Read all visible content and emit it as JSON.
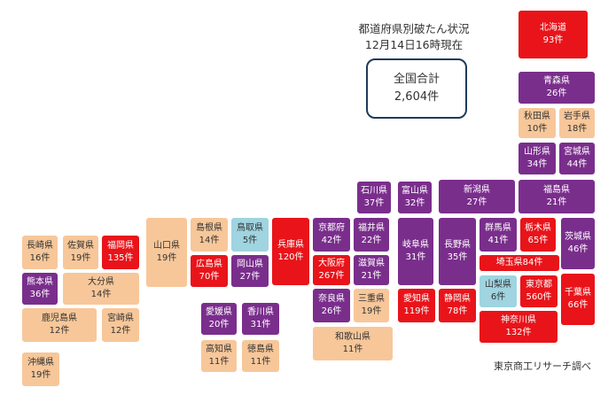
{
  "header": {
    "title_line1": "都道府県別破たん状況",
    "title_line2": "12月14日16時現在"
  },
  "total": {
    "label": "全国合計",
    "value": "2,604件"
  },
  "source": "東京商工リサーチ調べ",
  "colors": {
    "red": "#e8141a",
    "purple": "#7a2e8c",
    "orange": "#f7c79a",
    "blue": "#9fd4e0"
  },
  "prefectures": [
    {
      "name": "北海道",
      "count": "93件",
      "color": "red"
    },
    {
      "name": "青森県",
      "count": "26件",
      "color": "purple"
    },
    {
      "name": "秋田県",
      "count": "10件",
      "color": "orange"
    },
    {
      "name": "岩手県",
      "count": "18件",
      "color": "orange"
    },
    {
      "name": "山形県",
      "count": "34件",
      "color": "purple"
    },
    {
      "name": "宮城県",
      "count": "44件",
      "color": "purple"
    },
    {
      "name": "石川県",
      "count": "37件",
      "color": "purple"
    },
    {
      "name": "富山県",
      "count": "32件",
      "color": "purple"
    },
    {
      "name": "新潟県",
      "count": "27件",
      "color": "purple"
    },
    {
      "name": "福島県",
      "count": "21件",
      "color": "purple"
    },
    {
      "name": "島根県",
      "count": "14件",
      "color": "orange"
    },
    {
      "name": "鳥取県",
      "count": "5件",
      "color": "blue"
    },
    {
      "name": "兵庫県",
      "count": "120件",
      "color": "red"
    },
    {
      "name": "京都府",
      "count": "42件",
      "color": "purple"
    },
    {
      "name": "福井県",
      "count": "22件",
      "color": "purple"
    },
    {
      "name": "岐阜県",
      "count": "31件",
      "color": "purple"
    },
    {
      "name": "長野県",
      "count": "35件",
      "color": "purple"
    },
    {
      "name": "群馬県",
      "count": "41件",
      "color": "purple"
    },
    {
      "name": "栃木県",
      "count": "65件",
      "color": "red"
    },
    {
      "name": "茨城県",
      "count": "46件",
      "color": "purple"
    },
    {
      "name": "長崎県",
      "count": "16件",
      "color": "orange"
    },
    {
      "name": "佐賀県",
      "count": "19件",
      "color": "orange"
    },
    {
      "name": "福岡県",
      "count": "135件",
      "color": "red"
    },
    {
      "name": "山口県",
      "count": "19件",
      "color": "orange"
    },
    {
      "name": "広島県",
      "count": "70件",
      "color": "red"
    },
    {
      "name": "岡山県",
      "count": "27件",
      "color": "purple"
    },
    {
      "name": "大阪府",
      "count": "267件",
      "color": "red"
    },
    {
      "name": "滋賀県",
      "count": "21件",
      "color": "purple"
    },
    {
      "name": "埼玉県",
      "count": "84件",
      "color": "red"
    },
    {
      "name": "熊本県",
      "count": "36件",
      "color": "purple"
    },
    {
      "name": "大分県",
      "count": "14件",
      "color": "orange"
    },
    {
      "name": "山梨県",
      "count": "6件",
      "color": "blue"
    },
    {
      "name": "東京都",
      "count": "560件",
      "color": "red"
    },
    {
      "name": "千葉県",
      "count": "66件",
      "color": "red"
    },
    {
      "name": "奈良県",
      "count": "26件",
      "color": "purple"
    },
    {
      "name": "三重県",
      "count": "19件",
      "color": "orange"
    },
    {
      "name": "愛知県",
      "count": "119件",
      "color": "red"
    },
    {
      "name": "静岡県",
      "count": "78件",
      "color": "red"
    },
    {
      "name": "鹿児島県",
      "count": "12件",
      "color": "orange"
    },
    {
      "name": "宮崎県",
      "count": "12件",
      "color": "orange"
    },
    {
      "name": "愛媛県",
      "count": "20件",
      "color": "purple"
    },
    {
      "name": "香川県",
      "count": "31件",
      "color": "purple"
    },
    {
      "name": "神奈川県",
      "count": "132件",
      "color": "red"
    },
    {
      "name": "和歌山県",
      "count": "11件",
      "color": "orange"
    },
    {
      "name": "高知県",
      "count": "11件",
      "color": "orange"
    },
    {
      "name": "徳島県",
      "count": "11件",
      "color": "orange"
    },
    {
      "name": "沖縄県",
      "count": "19件",
      "color": "orange"
    }
  ]
}
